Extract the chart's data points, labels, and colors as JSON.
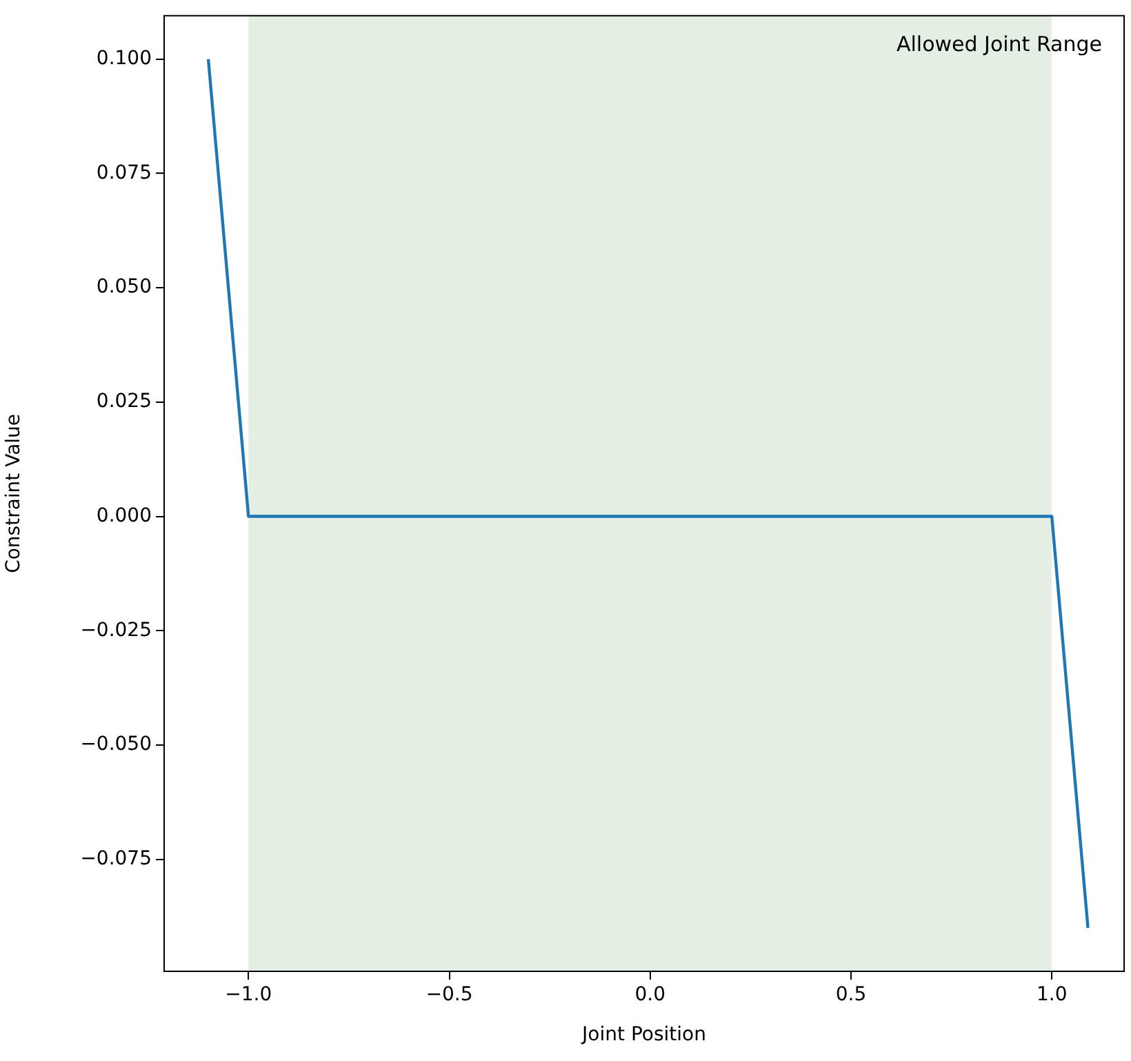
{
  "chart_data": {
    "type": "line",
    "xlabel": "Joint Position",
    "ylabel": "Constraint Value",
    "x": [
      -1.1,
      -1.0,
      1.0,
      1.09
    ],
    "series": [
      {
        "color": "#1f77b4",
        "values": [
          0.1,
          0,
          0,
          -0.09
        ]
      }
    ],
    "xlim": [
      -1.21,
      1.18
    ],
    "ylim": [
      -0.0995,
      0.1095
    ],
    "xticks": [
      {
        "value": -1,
        "label": "−1.0"
      },
      {
        "value": -0.5,
        "label": "−0.5"
      },
      {
        "value": 0,
        "label": "0.0"
      },
      {
        "value": 0.5,
        "label": "0.5"
      },
      {
        "value": 1,
        "label": "1.0"
      }
    ],
    "yticks": [
      {
        "value": -0.075,
        "label": "−0.075"
      },
      {
        "value": -0.05,
        "label": "−0.050"
      },
      {
        "value": -0.025,
        "label": "−0.025"
      },
      {
        "value": 0,
        "label": "0.000"
      },
      {
        "value": 0.025,
        "label": "0.025"
      },
      {
        "value": 0.05,
        "label": "0.050"
      },
      {
        "value": 0.075,
        "label": "0.075"
      },
      {
        "value": 0.1,
        "label": "0.100"
      }
    ],
    "bands": [
      {
        "axis": "x",
        "from": -1,
        "to": 1,
        "label": "Allowed Joint Range",
        "color": "#e3efe3"
      }
    ],
    "legend": "top right",
    "grid": false,
    "marker": "none",
    "line_style": "solid"
  }
}
